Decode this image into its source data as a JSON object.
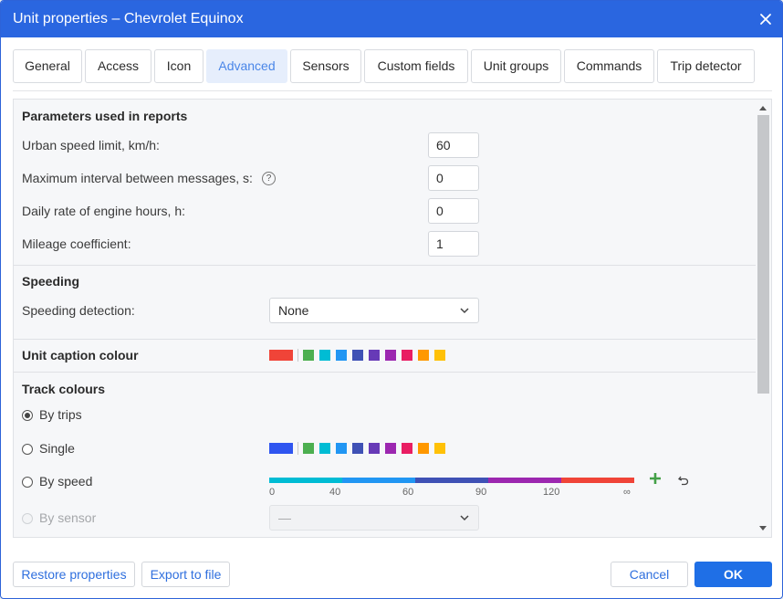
{
  "window": {
    "title": "Unit properties – Chevrolet Equinox"
  },
  "tabs": [
    {
      "label": "General"
    },
    {
      "label": "Access"
    },
    {
      "label": "Icon"
    },
    {
      "label": "Advanced",
      "active": true
    },
    {
      "label": "Sensors"
    },
    {
      "label": "Custom fields"
    },
    {
      "label": "Unit groups"
    },
    {
      "label": "Commands"
    },
    {
      "label": "Trip detector"
    }
  ],
  "reports": {
    "heading": "Parameters used in reports",
    "urban_speed_label": "Urban speed limit, km/h:",
    "urban_speed_value": "60",
    "max_interval_label": "Maximum interval between messages, s:",
    "max_interval_value": "0",
    "help_glyph": "?",
    "engine_hours_label": "Daily rate of engine hours, h:",
    "engine_hours_value": "0",
    "mileage_label": "Mileage coefficient:",
    "mileage_value": "1"
  },
  "speeding": {
    "heading": "Speeding",
    "detection_label": "Speeding detection:",
    "detection_value": "None"
  },
  "caption_colour": {
    "label": "Unit caption colour",
    "selected": "#f04438",
    "palette": [
      "#4caf50",
      "#00bcd4",
      "#2196f3",
      "#3f51b5",
      "#673ab7",
      "#9c27b0",
      "#e91e63",
      "#ff9800",
      "#ffc107"
    ]
  },
  "track_colours": {
    "heading": "Track colours",
    "options": [
      {
        "label": "By trips",
        "checked": true,
        "disabled": false
      },
      {
        "label": "Single",
        "checked": false,
        "disabled": false
      },
      {
        "label": "By speed",
        "checked": false,
        "disabled": false
      },
      {
        "label": "By sensor",
        "checked": false,
        "disabled": true
      }
    ],
    "single_selected": "#2f55f0",
    "single_palette": [
      "#4caf50",
      "#00bcd4",
      "#2196f3",
      "#3f51b5",
      "#673ab7",
      "#9c27b0",
      "#e91e63",
      "#ff9800",
      "#ffc107"
    ],
    "speed_ticks": [
      "0",
      "40",
      "60",
      "90",
      "120",
      "∞"
    ],
    "speed_colours": [
      "#00bcd4",
      "#2196f3",
      "#3f51b5",
      "#9c27b0",
      "#f04438"
    ],
    "sensor_value": "—"
  },
  "footer": {
    "restore_label": "Restore properties",
    "export_label": "Export to file",
    "cancel_label": "Cancel",
    "ok_label": "OK"
  },
  "icons": {
    "close": "close-icon",
    "help": "help-circle-icon",
    "dropdown": "chevron-down-icon",
    "add": "plus-icon",
    "reset": "undo-icon"
  },
  "colors": {
    "title_bar": "#2a66e0",
    "accent": "#1f6fe6",
    "active_tab_bg": "#e6eefc",
    "add_icon": "#43a047"
  }
}
